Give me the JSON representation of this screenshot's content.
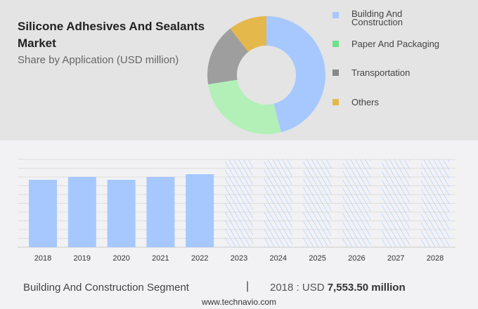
{
  "title": "Silicone Adhesives And Sealants Market",
  "subtitle": "Share by Application (USD million)",
  "chart_data": [
    {
      "type": "pie",
      "style": "donut",
      "categories": [
        "Building And Construction",
        "Paper And Packaging",
        "Transportation",
        "Others"
      ],
      "values": [
        46,
        26.5,
        17,
        10.5
      ],
      "colors": [
        "#a6c8ff",
        "#b3f0b8",
        "#9e9e9e",
        "#e4b84b"
      ],
      "legend": "right"
    },
    {
      "type": "bar",
      "categories": [
        "2018",
        "2019",
        "2020",
        "2021",
        "2022",
        "2023",
        "2024",
        "2025",
        "2026",
        "2027",
        "2028"
      ],
      "values": [
        7553.5,
        7870,
        7553.5,
        7870,
        8180,
        null,
        null,
        null,
        null,
        null,
        null
      ],
      "forecast_hatched": [
        "2023",
        "2024",
        "2025",
        "2026",
        "2027",
        "2028"
      ],
      "color": "#a6c8ff",
      "grid": true
    }
  ],
  "footer": {
    "segment": "Building And Construction Segment",
    "separator": "|",
    "year_label": "2018 : USD ",
    "value": "7,553.50 million"
  },
  "site": "www.technavio.com"
}
